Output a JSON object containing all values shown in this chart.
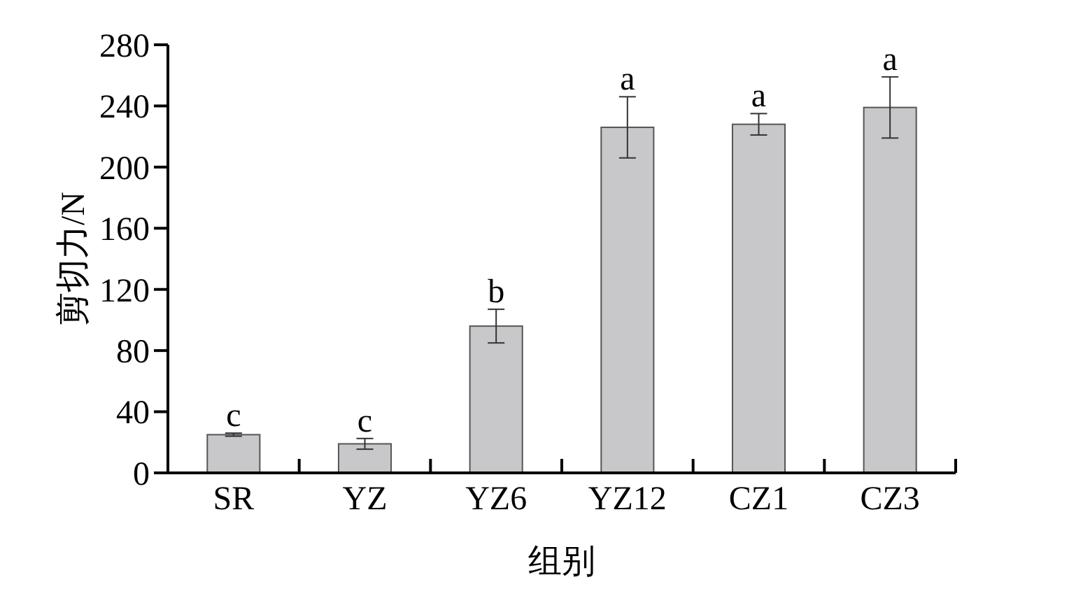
{
  "chart_data": {
    "type": "bar",
    "xlabel": "组别",
    "ylabel": "剪切力/N",
    "categories": [
      "SR",
      "YZ",
      "YZ6",
      "YZ12",
      "CZ1",
      "CZ3"
    ],
    "values": [
      25,
      19,
      96,
      226,
      228,
      239
    ],
    "errors": [
      1,
      3.5,
      11,
      20,
      7,
      20
    ],
    "color": "#c8c8ca",
    "ylim": [
      0,
      280
    ],
    "yticks": [
      0,
      40,
      80,
      120,
      160,
      200,
      240,
      280
    ],
    "grid": false,
    "annotations": [
      {
        "text": "c",
        "x": "SR",
        "y": 26
      },
      {
        "text": "c",
        "x": "YZ",
        "y": 22.5
      },
      {
        "text": "b",
        "x": "YZ6",
        "y": 107
      },
      {
        "text": "a",
        "x": "YZ12",
        "y": 246
      },
      {
        "text": "a",
        "x": "CZ1",
        "y": 235
      },
      {
        "text": "a",
        "x": "CZ3",
        "y": 259
      }
    ]
  }
}
